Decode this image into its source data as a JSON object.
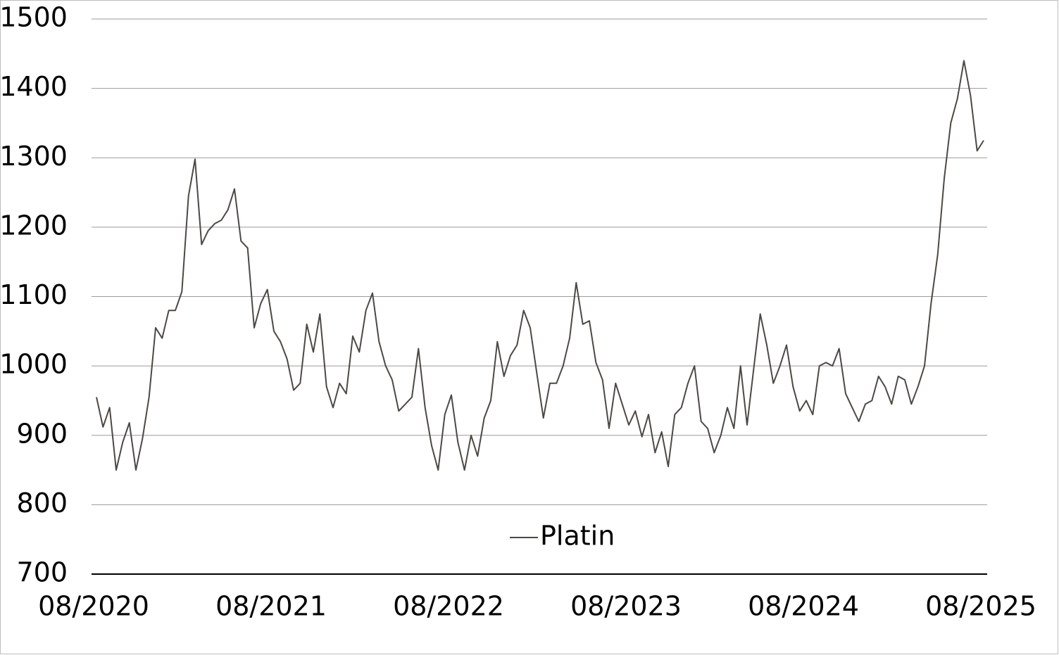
{
  "chart_data": {
    "type": "line",
    "categories": [
      "08/2020",
      null,
      null,
      null,
      null,
      null,
      null,
      null,
      null,
      null,
      null,
      null,
      null,
      null,
      null,
      null,
      null,
      null,
      null,
      null,
      null,
      null,
      null,
      null,
      null,
      null,
      null,
      "08/2021",
      null,
      null,
      null,
      null,
      null,
      null,
      null,
      null,
      null,
      null,
      null,
      null,
      null,
      null,
      null,
      null,
      null,
      null,
      null,
      null,
      null,
      null,
      null,
      null,
      null,
      null,
      "08/2022",
      null,
      null,
      null,
      null,
      null,
      null,
      null,
      null,
      null,
      null,
      null,
      null,
      null,
      null,
      null,
      null,
      null,
      null,
      null,
      null,
      null,
      null,
      null,
      null,
      null,
      null,
      "08/2023",
      null,
      null,
      null,
      null,
      null,
      null,
      null,
      null,
      null,
      null,
      null,
      null,
      null,
      null,
      null,
      null,
      null,
      null,
      null,
      null,
      null,
      null,
      null,
      null,
      null,
      null,
      "08/2024",
      null,
      null,
      null,
      null,
      null,
      null,
      null,
      null,
      null,
      null,
      null,
      null,
      null,
      null,
      null,
      null,
      null,
      null,
      null,
      null,
      null,
      null,
      null,
      null,
      null,
      null,
      "08/2025"
    ],
    "series": [
      {
        "name": "Platin",
        "color": "#4d4843",
        "values": [
          955,
          912,
          940,
          850,
          890,
          918,
          850,
          895,
          955,
          1055,
          1040,
          1080,
          1080,
          1107,
          1245,
          1298,
          1175,
          1195,
          1205,
          1210,
          1225,
          1255,
          1180,
          1170,
          1055,
          1090,
          1110,
          1050,
          1035,
          1010,
          965,
          975,
          1060,
          1020,
          1075,
          970,
          940,
          975,
          960,
          1043,
          1020,
          1080,
          1105,
          1035,
          1000,
          980,
          935,
          945,
          955,
          1025,
          940,
          885,
          850,
          930,
          958,
          890,
          850,
          900,
          870,
          925,
          950,
          1035,
          985,
          1015,
          1030,
          1080,
          1055,
          990,
          925,
          975,
          975,
          1000,
          1040,
          1120,
          1060,
          1065,
          1005,
          980,
          910,
          975,
          945,
          915,
          935,
          898,
          930,
          875,
          905,
          855,
          930,
          940,
          975,
          1000,
          920,
          910,
          875,
          900,
          940,
          910,
          1000,
          915,
          995,
          1075,
          1030,
          975,
          1000,
          1030,
          970,
          935,
          950,
          930,
          1000,
          1005,
          1000,
          1025,
          960,
          940,
          920,
          945,
          950,
          985,
          970,
          945,
          985,
          980,
          945,
          970,
          1000,
          1090,
          1160,
          1270,
          1350,
          1385,
          1440,
          1390,
          1310,
          1325
        ]
      }
    ],
    "ylim": [
      700,
      1500
    ],
    "yticks": [
      700,
      800,
      900,
      1000,
      1100,
      1200,
      1300,
      1400,
      1500
    ],
    "grid": true,
    "legend": "bottom"
  }
}
